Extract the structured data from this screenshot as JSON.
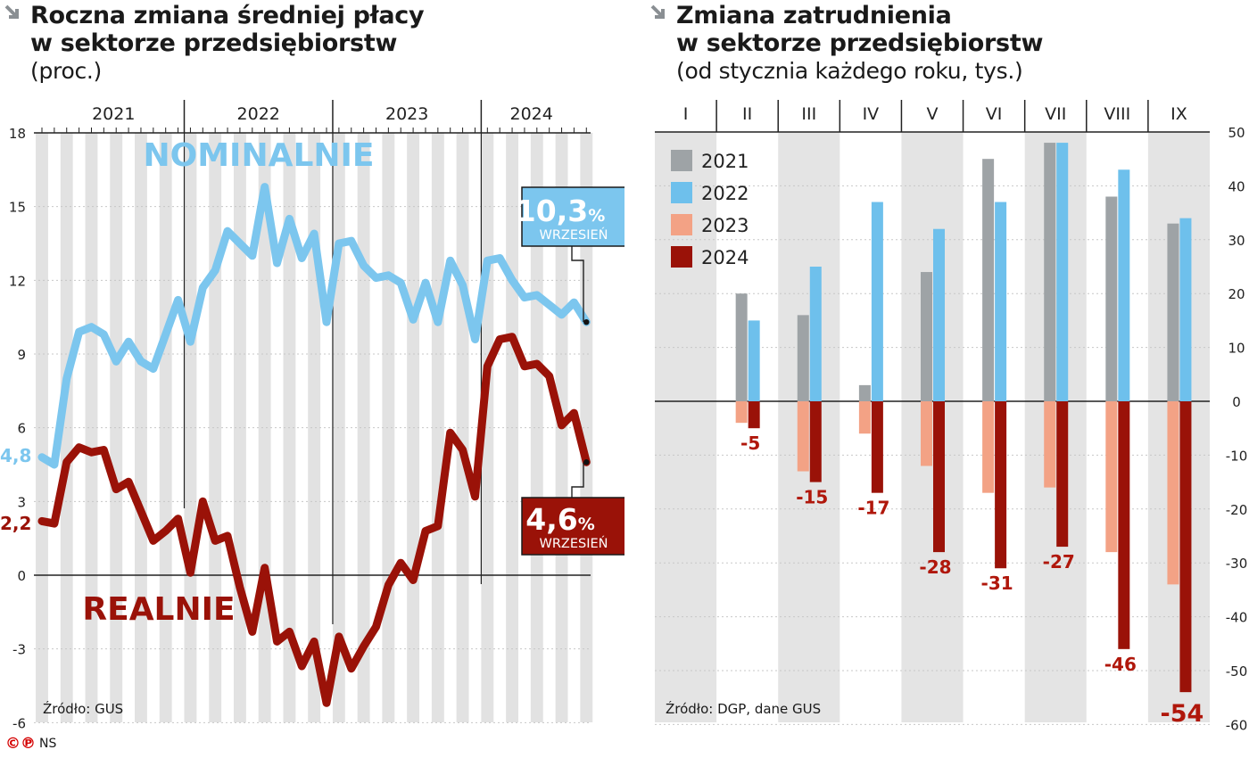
{
  "left": {
    "title_line1": "Roczna zmiana średniej płacy",
    "title_line2": "w sektorze przedsiębiorstw",
    "subtitle": "(proc.)",
    "source": "Źródło: GUS",
    "years": [
      "2021",
      "2022",
      "2023",
      "2024"
    ],
    "yticks": [
      "18",
      "15",
      "12",
      "9",
      "6",
      "3",
      "0",
      "-3",
      "-6"
    ],
    "label_nominal": "NOMINALNIE",
    "label_real": "REALNIE",
    "start_nominal": "4,8",
    "start_real": "2,2",
    "callout_nominal_value": "10,3",
    "callout_nominal_pct": "%",
    "callout_nominal_month": "WRZESIEŃ",
    "callout_real_value": "4,6",
    "callout_real_pct": "%",
    "callout_real_month": "WRZESIEŃ",
    "colors": {
      "nominal": "#7cc6ee",
      "real": "#9a1208",
      "stripe": "#e2e2e2"
    }
  },
  "right": {
    "title_line1": "Zmiana zatrudnienia",
    "title_line2": "w sektorze przedsiębiorstw",
    "subtitle": "(od stycznia każdego roku, tys.)",
    "source": "Źródło: DGP, dane GUS",
    "months": [
      "I",
      "II",
      "III",
      "IV",
      "V",
      "VI",
      "VII",
      "VIII",
      "IX"
    ],
    "yticks": [
      "50",
      "40",
      "30",
      "20",
      "10",
      "0",
      "-10",
      "-20",
      "-30",
      "-40",
      "-50",
      "-60"
    ],
    "legend": [
      "2021",
      "2022",
      "2023",
      "2024"
    ],
    "labels_2024": [
      "",
      "-5",
      "-15",
      "-17",
      "-28",
      "-31",
      "-27",
      "-46",
      "-54"
    ],
    "colors": {
      "2021": "#9ea3a6",
      "2022": "#6ec0ec",
      "2023": "#f3a285",
      "2024": "#9a1208",
      "label": "#b0170b"
    }
  },
  "footer": {
    "logo": "©℗",
    "author": "NS"
  },
  "chart_data": [
    {
      "type": "line",
      "title": "Roczna zmiana średniej płacy w sektorze przedsiębiorstw",
      "ylabel": "(proc.)",
      "ylim": [
        -6,
        18
      ],
      "x_start": "2021-01",
      "x_end": "2024-09",
      "grid": true,
      "series": [
        {
          "name": "NOMINALNIE",
          "values": [
            4.8,
            4.5,
            8.0,
            9.9,
            10.1,
            9.8,
            8.7,
            9.5,
            8.7,
            8.4,
            9.8,
            11.2,
            9.5,
            11.7,
            12.4,
            14.0,
            13.5,
            13.0,
            15.8,
            12.7,
            14.5,
            12.9,
            13.9,
            10.3,
            13.5,
            13.6,
            12.6,
            12.1,
            12.2,
            11.9,
            10.4,
            11.9,
            10.3,
            12.8,
            11.8,
            9.6,
            12.8,
            12.9,
            12.0,
            11.3,
            11.4,
            11.0,
            10.6,
            11.1,
            10.3
          ]
        },
        {
          "name": "REALNIE",
          "values": [
            2.2,
            2.1,
            4.6,
            5.2,
            5.0,
            5.1,
            3.5,
            3.8,
            2.6,
            1.4,
            1.8,
            2.3,
            0.1,
            3.0,
            1.4,
            1.6,
            -0.5,
            -2.3,
            0.3,
            -2.7,
            -2.3,
            -3.7,
            -2.7,
            -5.2,
            -2.5,
            -3.8,
            -2.9,
            -2.1,
            -0.4,
            0.5,
            -0.2,
            1.8,
            2.0,
            5.8,
            5.1,
            3.2,
            8.5,
            9.6,
            9.7,
            8.5,
            8.6,
            8.1,
            6.1,
            6.6,
            4.6
          ]
        }
      ]
    },
    {
      "type": "bar",
      "title": "Zmiana zatrudnienia w sektorze przedsiębiorstw",
      "ylabel": "(od stycznia każdego roku, tys.)",
      "categories": [
        "I",
        "II",
        "III",
        "IV",
        "V",
        "VI",
        "VII",
        "VIII",
        "IX"
      ],
      "ylim": [
        -60,
        50
      ],
      "legend": "top-left",
      "series": [
        {
          "name": "2021",
          "values": [
            0,
            20,
            16,
            3,
            24,
            45,
            48,
            38,
            33
          ]
        },
        {
          "name": "2022",
          "values": [
            0,
            15,
            25,
            37,
            32,
            37,
            48,
            43,
            34
          ]
        },
        {
          "name": "2023",
          "values": [
            0,
            -4,
            -13,
            -6,
            -12,
            -17,
            -16,
            -28,
            -34
          ]
        },
        {
          "name": "2024",
          "values": [
            0,
            -5,
            -15,
            -17,
            -28,
            -31,
            -27,
            -46,
            -54
          ]
        }
      ]
    }
  ]
}
